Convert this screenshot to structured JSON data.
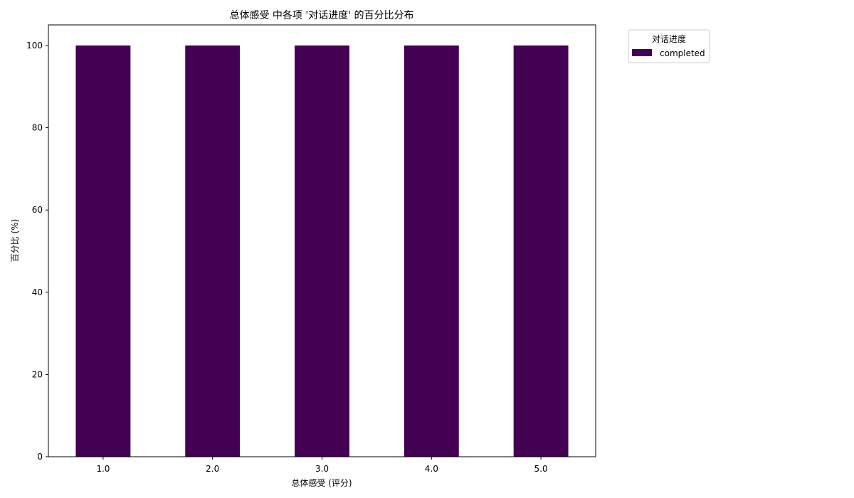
{
  "chart_data": {
    "type": "bar",
    "stacked": true,
    "title": "总体感受 中各项 '对话进度' 的百分比分布",
    "xlabel": "总体感受 (评分)",
    "ylabel": "百分比 (%)",
    "categories": [
      "1.0",
      "2.0",
      "3.0",
      "4.0",
      "5.0"
    ],
    "series": [
      {
        "name": "completed",
        "color": "#440154",
        "values": [
          100,
          100,
          100,
          100,
          100
        ]
      }
    ],
    "ylim": [
      0,
      105
    ],
    "yticks": [
      0,
      20,
      40,
      60,
      80,
      100
    ],
    "grid": false,
    "legend": {
      "title": "对话进度",
      "placement": "outside-upper-right"
    }
  }
}
